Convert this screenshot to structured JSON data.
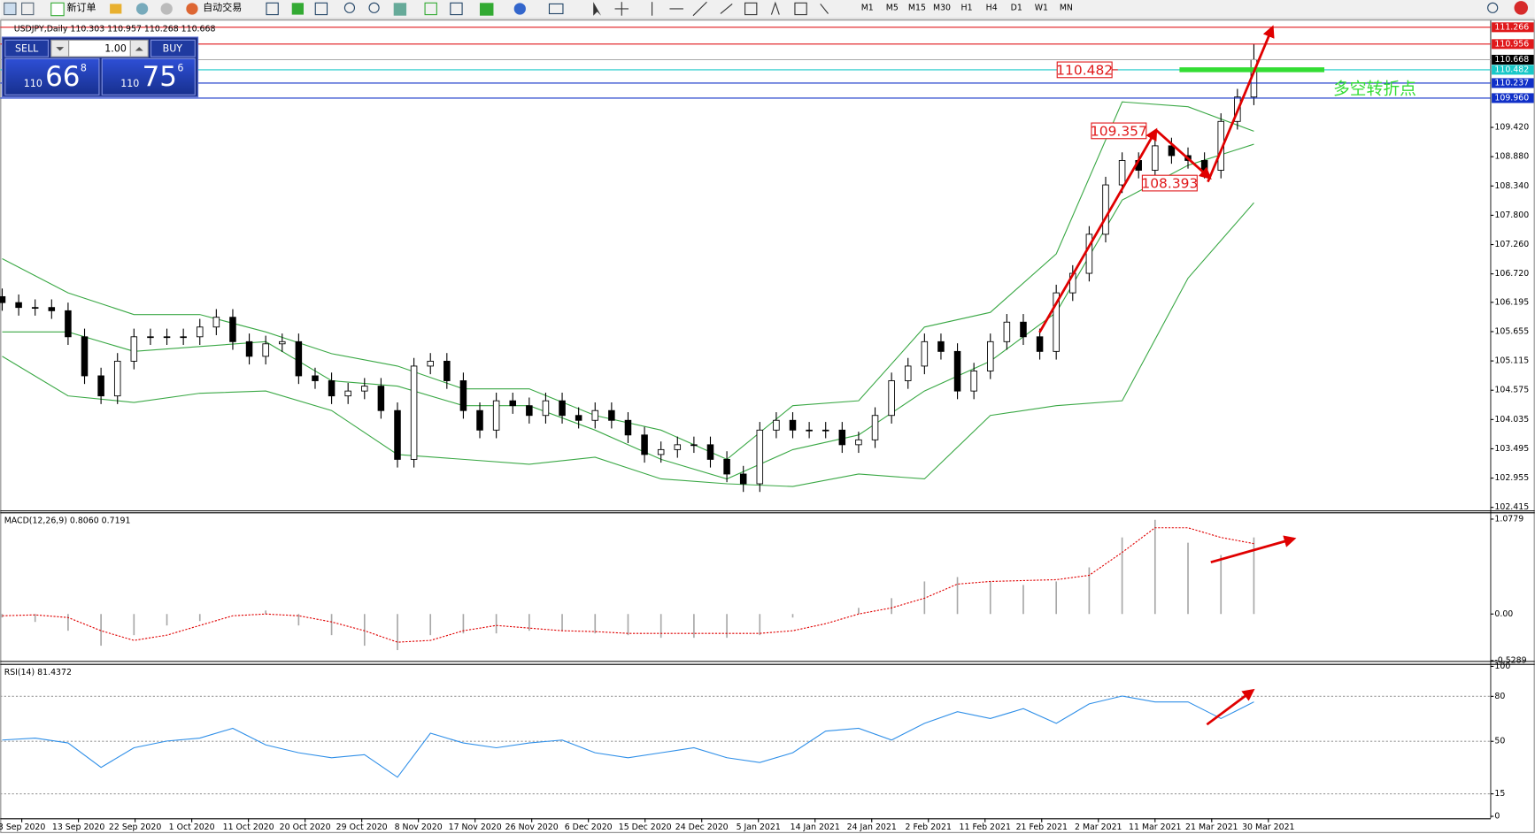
{
  "toolbar": {
    "new_order": "新订单",
    "auto_trading": "自动交易",
    "timeframes": [
      "M1",
      "M5",
      "M15",
      "M30",
      "H1",
      "H4",
      "D1",
      "W1",
      "MN"
    ]
  },
  "trade_panel": {
    "sell": "SELL",
    "buy": "BUY",
    "lots": "1.00",
    "bid": {
      "big": "110",
      "main": "66",
      "sup": "8"
    },
    "ask": {
      "big": "110",
      "main": "75",
      "sup": "6"
    }
  },
  "price_chart": {
    "header": "USDJPY,Daily  110.303 110.957 110.268 110.668",
    "ylim": [
      102.36,
      111.39
    ],
    "yticks": [
      102.415,
      102.955,
      103.495,
      104.035,
      104.575,
      105.115,
      105.655,
      106.195,
      {
        "value": 106.72,
        "label": "106.720"
      },
      {
        "value": 107.26,
        "label": "107.260"
      },
      {
        "value": 107.8,
        "label": "107.800"
      },
      {
        "value": 108.34,
        "label": "108.340"
      },
      {
        "value": 108.88,
        "label": "108.880"
      },
      {
        "value": 109.42,
        "label": "109.420"
      }
    ],
    "x_labels": [
      "3 Sep 2020",
      "13 Sep 2020",
      "22 Sep 2020",
      "1 Oct 2020",
      "11 Oct 2020",
      "20 Oct 2020",
      "29 Oct 2020",
      "8 Nov 2020",
      "17 Nov 2020",
      "26 Nov 2020",
      "6 Dec 2020",
      "15 Dec 2020",
      "24 Dec 2020",
      "5 Jan 2021",
      "14 Jan 2021",
      "24 Jan 2021",
      "2 Feb 2021",
      "11 Feb 2021",
      "21 Feb 2021",
      "2 Mar 2021",
      "11 Mar 2021",
      "21 Mar 2021",
      "30 Mar 2021"
    ],
    "up_color": "#ffffff",
    "down_color": "#000000",
    "candles": [
      [
        106.3,
        106.45,
        106.04,
        106.19
      ],
      [
        106.19,
        106.34,
        105.95,
        106.1
      ],
      [
        106.1,
        106.25,
        105.95,
        106.1
      ],
      [
        106.1,
        106.25,
        105.89,
        106.04
      ],
      [
        106.04,
        106.19,
        105.41,
        105.56
      ],
      [
        105.56,
        105.71,
        104.69,
        104.84
      ],
      [
        104.84,
        104.99,
        104.32,
        104.47
      ],
      [
        104.47,
        105.26,
        104.32,
        105.11
      ],
      [
        105.11,
        105.71,
        104.96,
        105.56
      ],
      [
        105.56,
        105.71,
        105.41,
        105.56
      ],
      [
        105.56,
        105.71,
        105.41,
        105.56
      ],
      [
        105.56,
        105.71,
        105.41,
        105.56
      ],
      [
        105.56,
        105.89,
        105.41,
        105.74
      ],
      [
        105.74,
        106.07,
        105.59,
        105.92
      ],
      [
        105.92,
        106.07,
        105.32,
        105.47
      ],
      [
        105.47,
        105.62,
        105.05,
        105.2
      ],
      [
        105.2,
        105.58,
        105.05,
        105.43
      ],
      [
        105.43,
        105.62,
        105.28,
        105.47
      ],
      [
        105.47,
        105.62,
        104.69,
        104.84
      ],
      [
        104.84,
        104.99,
        104.6,
        104.75
      ],
      [
        104.75,
        104.9,
        104.32,
        104.47
      ],
      [
        104.47,
        104.71,
        104.32,
        104.56
      ],
      [
        104.56,
        104.8,
        104.41,
        104.65
      ],
      [
        104.65,
        104.8,
        104.05,
        104.2
      ],
      [
        104.2,
        104.35,
        103.15,
        103.3
      ],
      [
        103.3,
        105.17,
        103.15,
        105.02
      ],
      [
        105.02,
        105.26,
        104.87,
        105.11
      ],
      [
        105.11,
        105.26,
        104.6,
        104.75
      ],
      [
        104.75,
        104.9,
        104.05,
        104.2
      ],
      [
        104.2,
        104.35,
        103.69,
        103.84
      ],
      [
        103.84,
        104.53,
        103.69,
        104.38
      ],
      [
        104.38,
        104.53,
        104.14,
        104.29
      ],
      [
        104.29,
        104.44,
        103.96,
        104.11
      ],
      [
        104.11,
        104.53,
        103.96,
        104.38
      ],
      [
        104.38,
        104.53,
        103.96,
        104.11
      ],
      [
        104.11,
        104.26,
        103.87,
        104.02
      ],
      [
        104.02,
        104.35,
        103.87,
        104.2
      ],
      [
        104.2,
        104.35,
        103.87,
        104.02
      ],
      [
        104.02,
        104.17,
        103.6,
        103.75
      ],
      [
        103.75,
        103.9,
        103.24,
        103.39
      ],
      [
        103.39,
        103.63,
        103.24,
        103.48
      ],
      [
        103.48,
        103.72,
        103.33,
        103.57
      ],
      [
        103.57,
        103.72,
        103.42,
        103.57
      ],
      [
        103.57,
        103.72,
        103.15,
        103.3
      ],
      [
        103.3,
        103.45,
        102.88,
        103.03
      ],
      [
        103.03,
        103.18,
        102.7,
        102.85
      ],
      [
        102.85,
        103.99,
        102.7,
        103.84
      ],
      [
        103.84,
        104.17,
        103.69,
        104.02
      ],
      [
        104.02,
        104.17,
        103.69,
        103.84
      ],
      [
        103.84,
        103.99,
        103.69,
        103.84
      ],
      [
        103.84,
        103.99,
        103.69,
        103.84
      ],
      [
        103.84,
        103.99,
        103.42,
        103.57
      ],
      [
        103.57,
        103.81,
        103.42,
        103.66
      ],
      [
        103.66,
        104.26,
        103.51,
        104.11
      ],
      [
        104.11,
        104.9,
        103.96,
        104.75
      ],
      [
        104.75,
        105.17,
        104.6,
        105.02
      ],
      [
        105.02,
        105.62,
        104.87,
        105.47
      ],
      [
        105.47,
        105.62,
        105.14,
        105.29
      ],
      [
        105.29,
        105.44,
        104.41,
        104.56
      ],
      [
        104.56,
        105.08,
        104.41,
        104.93
      ],
      [
        104.93,
        105.62,
        104.78,
        105.47
      ],
      [
        105.47,
        105.98,
        105.32,
        105.83
      ],
      [
        105.83,
        105.98,
        105.41,
        105.56
      ],
      [
        105.56,
        105.71,
        105.14,
        105.29
      ],
      [
        105.29,
        106.52,
        105.14,
        106.37
      ],
      [
        106.37,
        106.88,
        106.22,
        106.73
      ],
      [
        106.73,
        107.6,
        106.58,
        107.45
      ],
      [
        107.45,
        108.51,
        107.3,
        108.36
      ],
      [
        108.36,
        108.96,
        108.21,
        108.81
      ],
      [
        108.81,
        108.96,
        108.48,
        108.63
      ],
      [
        108.63,
        109.23,
        108.48,
        109.08
      ],
      [
        109.08,
        109.23,
        108.75,
        108.9
      ],
      [
        108.9,
        109.05,
        108.66,
        108.81
      ],
      [
        108.81,
        108.96,
        108.48,
        108.63
      ],
      [
        108.63,
        109.68,
        108.48,
        109.53
      ],
      [
        109.53,
        110.13,
        109.38,
        109.98
      ],
      [
        109.98,
        110.96,
        109.83,
        110.67
      ]
    ],
    "bollinger": {
      "color": "#3aa845",
      "upper": [
        107.0,
        106.37,
        105.97,
        105.97,
        105.65,
        105.25,
        105.02,
        104.6,
        104.6,
        104.11,
        103.84,
        103.3,
        104.29,
        104.38,
        105.74,
        106.01,
        107.09,
        109.89,
        109.8,
        109.35
      ],
      "middle": [
        105.65,
        105.65,
        105.29,
        105.38,
        105.47,
        104.75,
        104.65,
        104.29,
        104.29,
        103.84,
        103.3,
        102.94,
        103.48,
        103.75,
        104.56,
        105.11,
        106.01,
        108.08,
        108.72,
        109.11
      ],
      "lower": [
        105.2,
        104.47,
        104.35,
        104.52,
        104.56,
        104.2,
        103.39,
        103.3,
        103.21,
        103.34,
        102.94,
        102.85,
        102.8,
        103.03,
        102.94,
        104.11,
        104.29,
        104.38,
        106.64,
        108.03
      ]
    },
    "levels": [
      {
        "value": 111.266,
        "color": "#e0191b"
      },
      {
        "value": 110.956,
        "color": "#e0191b"
      },
      {
        "value": 110.668,
        "color": "#000000"
      },
      {
        "value": 110.482,
        "color": "#19c8c8"
      },
      {
        "value": 110.237,
        "color": "#1030c8"
      },
      {
        "value": 109.96,
        "label": "109.960",
        "color": "#1030c8"
      }
    ],
    "annotations": [
      110.482,
      109.357,
      108.393
    ],
    "annotation_color": "#e0191b",
    "pivot": {
      "label": "多空转折点",
      "value": 110.482,
      "color": "#33dd33"
    }
  },
  "macd": {
    "header": "MACD(12,26,9) 0.8060 0.7191",
    "ylim": [
      -0.533,
      1.155
    ],
    "yticks": [
      -0.5289,
      {
        "value": 0,
        "label": "0.00"
      },
      1.0779
    ],
    "hist_color": "#a8a8a8",
    "signal_color": "#e00000",
    "histogram": [
      -0.04,
      -0.09,
      -0.19,
      -0.36,
      -0.24,
      -0.13,
      -0.08,
      0,
      0.04,
      -0.13,
      -0.24,
      -0.36,
      -0.41,
      -0.24,
      -0.22,
      -0.22,
      -0.19,
      -0.19,
      -0.22,
      -0.24,
      -0.27,
      -0.27,
      -0.27,
      -0.24,
      -0.04,
      0,
      0.07,
      0.18,
      0.37,
      0.42,
      0.37,
      0.33,
      0.37,
      0.53,
      0.87,
      1.07,
      0.81,
      0.67,
      0.87
    ],
    "signal": [
      -0.02,
      -0.01,
      -0.04,
      -0.19,
      -0.3,
      -0.24,
      -0.13,
      -0.02,
      0,
      -0.02,
      -0.09,
      -0.19,
      -0.32,
      -0.3,
      -0.19,
      -0.13,
      -0.16,
      -0.19,
      -0.2,
      -0.22,
      -0.22,
      -0.22,
      -0.22,
      -0.22,
      -0.19,
      -0.11,
      0,
      0.07,
      0.18,
      0.34,
      0.37,
      0.38,
      0.39,
      0.44,
      0.7,
      0.98,
      0.98,
      0.87,
      0.8
    ]
  },
  "rsi": {
    "header": "RSI(14) 81.4372",
    "ylim": [
      -2,
      101
    ],
    "yticks": [
      0,
      15,
      50,
      80,
      100
    ],
    "color": "#2f8fe8",
    "values": [
      50.9,
      52.2,
      48.9,
      32.6,
      45.7,
      50.2,
      52.2,
      58.7,
      47.6,
      42.4,
      39.1,
      41.1,
      26.1,
      55.4,
      48.9,
      45.7,
      48.9,
      50.9,
      42.4,
      39.1,
      42.4,
      45.7,
      39.1,
      35.9,
      42.4,
      56.8,
      58.7,
      50.9,
      62.0,
      69.8,
      65.2,
      71.8,
      62.0,
      75.0,
      80.2,
      76.3,
      76.3,
      65.2,
      76.3
    ]
  }
}
